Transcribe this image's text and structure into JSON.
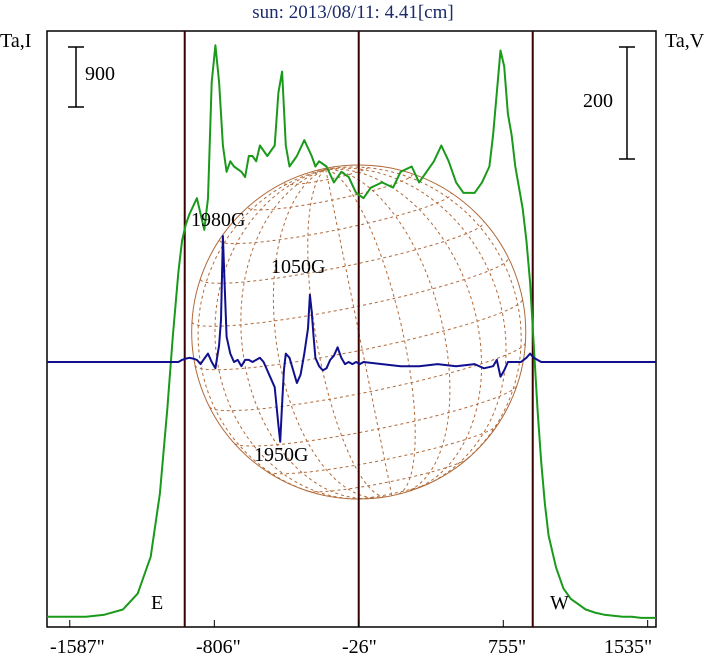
{
  "title": "sun: 2013/08/11: 4.41[cm]",
  "left_axis_label": "Ta,I",
  "right_axis_label": "Ta,V",
  "left_scale_label": "900",
  "right_scale_label": "200",
  "east_label": "E",
  "west_label": "W",
  "colors": {
    "intensity": "#1a9a1a",
    "polarization": "#10108e",
    "grid": "#b06a3a",
    "marker": "#3a0000"
  },
  "chart_data": {
    "type": "line",
    "title": "sun: 2013/08/11: 4.41[cm]",
    "xlabel": "",
    "ylabel_left": "Ta,I",
    "ylabel_right": "Ta,V",
    "xlim": [
      -1710,
      1580
    ],
    "x_ticks": [
      -1587,
      -806,
      -26,
      755,
      1535
    ],
    "x_tick_labels": [
      "-1587\"",
      "-806\"",
      "-26\"",
      "755\"",
      "1535\""
    ],
    "markers": [
      -966,
      -26,
      914
    ],
    "disk_radius": 940,
    "scale_bars": [
      {
        "side": "left",
        "value": 900
      },
      {
        "side": "right",
        "value": 200
      }
    ],
    "annotations": [
      {
        "text": "1980G",
        "x": -760
      },
      {
        "text": "1050G",
        "x": -293
      },
      {
        "text": "1950G",
        "x": -450
      }
    ],
    "ylim_I": [
      0,
      5500
    ],
    "ylim_V": [
      -600,
      600
    ],
    "series": [
      {
        "axis": "I",
        "x": [
          -1710,
          -1500,
          -1400,
          -1300,
          -1220,
          -1150,
          -1100,
          -1060,
          -1030,
          -1000,
          -980,
          -960,
          -940,
          -900,
          -860,
          -840,
          -820,
          -800,
          -780,
          -760,
          -740,
          -720,
          -700,
          -660,
          -640,
          -620,
          -600,
          -580,
          -560,
          -520,
          -480,
          -460,
          -440,
          -420,
          -400,
          -360,
          -320,
          -280,
          -260,
          -240,
          -200,
          -160,
          -120,
          -80,
          -40,
          0,
          40,
          100,
          160,
          200,
          260,
          300,
          380,
          420,
          460,
          500,
          540,
          560,
          600,
          640,
          680,
          700,
          720,
          740,
          760,
          780,
          800,
          820,
          840,
          860,
          880,
          900,
          920,
          940,
          960,
          980,
          1000,
          1040,
          1080,
          1120,
          1160,
          1200,
          1250,
          1300,
          1350,
          1400,
          1450,
          1500,
          1580
        ],
        "values": [
          30,
          30,
          50,
          100,
          250,
          600,
          1200,
          2000,
          2700,
          3300,
          3600,
          3750,
          3850,
          4000,
          3700,
          4000,
          5100,
          5450,
          5100,
          4500,
          4250,
          4350,
          4300,
          4250,
          4200,
          4400,
          4400,
          4350,
          4500,
          4400,
          4500,
          5000,
          5200,
          4500,
          4300,
          4400,
          4550,
          4400,
          4300,
          4350,
          4300,
          4150,
          4250,
          4200,
          4050,
          4000,
          4100,
          4150,
          4100,
          4250,
          4300,
          4150,
          4350,
          4500,
          4350,
          4150,
          4050,
          4050,
          4050,
          4150,
          4300,
          4600,
          5000,
          5400,
          5250,
          4800,
          4600,
          4300,
          4100,
          3900,
          3600,
          3200,
          2600,
          2000,
          1500,
          1100,
          800,
          500,
          300,
          200,
          150,
          100,
          70,
          50,
          40,
          30,
          30,
          20,
          20
        ]
      },
      {
        "axis": "V",
        "x": [
          -1710,
          -1400,
          -1100,
          -1000,
          -980,
          -960,
          -940,
          -920,
          -900,
          -880,
          -860,
          -840,
          -820,
          -800,
          -780,
          -770,
          -760,
          -750,
          -740,
          -720,
          -700,
          -680,
          -660,
          -640,
          -620,
          -600,
          -580,
          -560,
          -540,
          -520,
          -500,
          -480,
          -460,
          -450,
          -440,
          -430,
          -420,
          -400,
          -380,
          -360,
          -340,
          -320,
          -300,
          -290,
          -280,
          -270,
          -260,
          -240,
          -220,
          -200,
          -180,
          -160,
          -140,
          -120,
          -100,
          -80,
          -60,
          -40,
          -20,
          0,
          100,
          200,
          300,
          400,
          500,
          600,
          650,
          700,
          720,
          740,
          760,
          780,
          800,
          850,
          880,
          900,
          920,
          960,
          1000,
          1200,
          1580
        ],
        "values": [
          0,
          0,
          0,
          0,
          5,
          8,
          10,
          8,
          5,
          -5,
          8,
          20,
          0,
          -15,
          40,
          100,
          300,
          180,
          60,
          20,
          0,
          5,
          -10,
          5,
          5,
          0,
          5,
          10,
          0,
          -20,
          -40,
          -60,
          -150,
          -190,
          -100,
          -20,
          20,
          10,
          -20,
          -50,
          -30,
          20,
          80,
          160,
          120,
          60,
          10,
          -10,
          -20,
          -15,
          5,
          15,
          35,
          10,
          -5,
          0,
          -5,
          0,
          -5,
          0,
          -5,
          -10,
          -10,
          -5,
          -10,
          -5,
          -15,
          -10,
          5,
          -35,
          -20,
          0,
          0,
          0,
          10,
          20,
          10,
          0,
          0,
          0,
          0
        ]
      }
    ]
  }
}
